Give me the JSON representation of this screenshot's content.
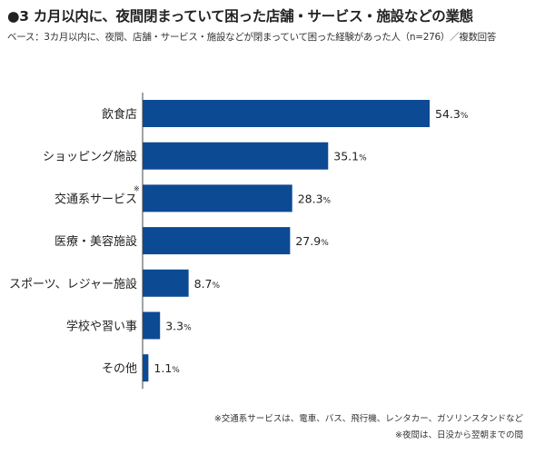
{
  "header": {
    "title": "●3 カ月以内に、夜間閉まっていて困った店舗・サービス・施設などの業態",
    "subtitle": "ベース：3カ月以内に、夜間、店舗・サービス・施設などが閉まっていて困った経験があった人（n=276）／複数回答"
  },
  "chart_data": {
    "type": "bar",
    "orientation": "horizontal",
    "categories": [
      "飲食店",
      "ショッピング施設",
      "交通系サービス",
      "医療・美容施設",
      "スポーツ、レジャー施設",
      "学校や習い事",
      "その他"
    ],
    "category_marks": [
      "",
      "",
      "※",
      "",
      "",
      "",
      ""
    ],
    "values": [
      54.3,
      35.1,
      28.3,
      27.9,
      8.7,
      3.3,
      1.1
    ],
    "value_unit": "%",
    "bar_color": "#0d4a94",
    "xlim": [
      0,
      60
    ],
    "grid": false,
    "legend": "none"
  },
  "notes": [
    "※交通系サービスは、電車、バス、飛行機、レンタカー、ガソリンスタンドなど",
    "※夜間は、日没から翌朝までの間"
  ]
}
